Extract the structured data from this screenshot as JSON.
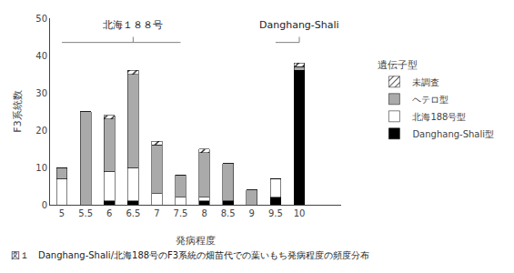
{
  "chart_data": {
    "type": "bar",
    "stacked": true,
    "categories": [
      "5",
      "5.5",
      "6",
      "6.5",
      "7",
      "7.5",
      "8",
      "8.5",
      "9",
      "9.5",
      "10"
    ],
    "series": [
      {
        "name": "Danghang-Shali型",
        "color": "#000000",
        "values": [
          0,
          0,
          1,
          1,
          0,
          0,
          1,
          1,
          0,
          2,
          36
        ]
      },
      {
        "name": "北海188号型",
        "color": "#ffffff",
        "values": [
          7,
          0,
          8,
          9,
          3,
          2,
          1,
          0,
          0,
          5,
          0
        ]
      },
      {
        "name": "ヘテロ型",
        "color": "#aaaaaa",
        "values": [
          3,
          25,
          14,
          25,
          13,
          6,
          12,
          10,
          4,
          0,
          1
        ]
      },
      {
        "name": "未調査",
        "color": "#ffffff",
        "marker": "hatch",
        "values": [
          0,
          0,
          1,
          1,
          1,
          0,
          1,
          0,
          0,
          0,
          1
        ]
      }
    ],
    "xlabel": "発病程度",
    "ylabel": "F3系統数",
    "ylim": [
      0,
      50
    ],
    "yticks": [
      0,
      10,
      20,
      30,
      40,
      50
    ],
    "grid": false,
    "legend": "right",
    "legend_title": "遺伝子型",
    "annotations": [
      {
        "text": "北海１８８号",
        "x": "6.5",
        "from": "5",
        "to": "7.5"
      },
      {
        "text": "Danghang-Shali",
        "x": "10",
        "from": "9.5",
        "to": "10"
      }
    ],
    "caption": "図１　Danghang-Shali/北海188号のF3系統の畑苗代での葉いもち発病程度の頻度分布"
  }
}
